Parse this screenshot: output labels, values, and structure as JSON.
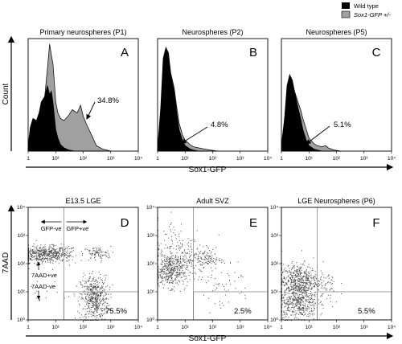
{
  "legend": {
    "items": [
      {
        "label": "Wild type",
        "color": "#000000"
      },
      {
        "label": "Sox1-GFP +/-",
        "color": "#a0a0a0"
      }
    ]
  },
  "chart_data": [
    {
      "type": "area",
      "panel": "A",
      "title": "Primary neurospheres (P1)",
      "xscale": "log",
      "xlim": [
        1,
        10000
      ],
      "xticks": [
        "1",
        "10¹",
        "10²",
        "10³",
        "10⁴"
      ],
      "ylabel": "Count",
      "xlabel": "Sox1-GFP",
      "percent_label": "34.8%",
      "series": [
        {
          "name": "Wild type",
          "color": "#000000",
          "x": [
            1,
            1.2,
            1.5,
            2,
            2.5,
            3,
            4,
            5,
            6,
            7,
            8,
            10,
            12,
            15,
            20,
            30,
            50
          ],
          "y": [
            0.05,
            0.22,
            0.3,
            0.28,
            0.35,
            0.45,
            0.5,
            0.6,
            0.52,
            0.55,
            0.45,
            0.2,
            0.12,
            0.06,
            0.03,
            0.01,
            0
          ]
        },
        {
          "name": "Sox1-GFP +/-",
          "color": "#a0a0a0",
          "x": [
            1,
            1.5,
            2,
            3,
            4,
            5,
            6,
            7,
            8,
            9,
            10,
            12,
            15,
            20,
            30,
            40,
            60,
            80,
            100,
            130,
            200,
            300,
            500,
            1000
          ],
          "y": [
            0.02,
            0.12,
            0.2,
            0.3,
            0.5,
            0.75,
            0.98,
            0.88,
            0.8,
            0.62,
            0.45,
            0.35,
            0.3,
            0.28,
            0.33,
            0.38,
            0.35,
            0.42,
            0.32,
            0.25,
            0.15,
            0.05,
            0.02,
            0
          ]
        }
      ]
    },
    {
      "type": "area",
      "panel": "B",
      "title": "Neurospheres (P2)",
      "xscale": "log",
      "xlim": [
        1,
        10000
      ],
      "xticks": [
        "1",
        "10¹",
        "10²",
        "10³",
        "10⁴"
      ],
      "percent_label": "4.8%",
      "series": [
        {
          "name": "Wild type",
          "color": "#000000",
          "x": [
            1,
            1.3,
            1.6,
            2,
            2.5,
            3,
            4,
            5,
            6,
            8,
            10,
            15,
            20,
            30
          ],
          "y": [
            0.02,
            0.4,
            0.85,
            0.95,
            0.9,
            0.7,
            0.55,
            0.35,
            0.2,
            0.1,
            0.05,
            0.02,
            0.01,
            0
          ]
        },
        {
          "name": "Sox1-GFP +/-",
          "color": "#a0a0a0",
          "x": [
            1,
            1.3,
            1.6,
            2,
            2.5,
            3,
            4,
            5,
            6,
            8,
            10,
            15,
            20,
            30,
            50,
            80,
            150
          ],
          "y": [
            0.02,
            0.35,
            0.8,
            0.92,
            0.88,
            0.72,
            0.58,
            0.4,
            0.26,
            0.15,
            0.1,
            0.06,
            0.04,
            0.03,
            0.02,
            0.01,
            0
          ]
        }
      ]
    },
    {
      "type": "area",
      "panel": "C",
      "title": "Neurospheres (P5)",
      "xscale": "log",
      "xlim": [
        1,
        10000
      ],
      "xticks": [
        "1",
        "10¹",
        "10²",
        "10³",
        "10⁴"
      ],
      "percent_label": "5.1%",
      "series": [
        {
          "name": "Wild type",
          "color": "#000000",
          "x": [
            1,
            1.3,
            1.6,
            2,
            2.5,
            3,
            4,
            5,
            6,
            8,
            10,
            15,
            20,
            30
          ],
          "y": [
            0.05,
            0.3,
            0.6,
            0.7,
            0.65,
            0.55,
            0.4,
            0.3,
            0.2,
            0.1,
            0.05,
            0.02,
            0.01,
            0
          ]
        },
        {
          "name": "Sox1-GFP +/-",
          "color": "#a0a0a0",
          "x": [
            1,
            1.3,
            1.6,
            2,
            2.5,
            3,
            4,
            5,
            6,
            8,
            10,
            15,
            20,
            30,
            40,
            50,
            80,
            150
          ],
          "y": [
            0.05,
            0.28,
            0.55,
            0.68,
            0.62,
            0.55,
            0.45,
            0.38,
            0.3,
            0.2,
            0.12,
            0.07,
            0.05,
            0.04,
            0.05,
            0.03,
            0.01,
            0
          ]
        }
      ]
    },
    {
      "type": "scatter",
      "panel": "D",
      "title": "E13.5 LGE",
      "xscale": "log",
      "yscale": "log",
      "xlim": [
        1,
        10000
      ],
      "ylim": [
        1,
        10000
      ],
      "xticks": [
        "1",
        "10¹",
        "10²",
        "10³",
        "10⁴"
      ],
      "yticks": [
        "10⁰",
        "10¹",
        "10²",
        "10³",
        "10⁴"
      ],
      "ylabel": "7AAD",
      "xlabel": "Sox1-GFP",
      "percent_label": "75.5%",
      "gate_x": 20,
      "gate_box": {
        "x": [
          20,
          10000
        ],
        "y": [
          1,
          10
        ]
      },
      "annotations": [
        "GFP-ve",
        "GFP+ve",
        "7AAD+ve",
        "7AAD-ve"
      ],
      "clusters": [
        {
          "cx": 3,
          "cy": 220,
          "sx": 0.45,
          "sy": 0.15,
          "n": 380
        },
        {
          "cx": 12,
          "cy": 230,
          "sx": 0.35,
          "sy": 0.14,
          "n": 160
        },
        {
          "cx": 300,
          "cy": 230,
          "sx": 0.25,
          "sy": 0.13,
          "n": 90
        },
        {
          "cx": 250,
          "cy": 6,
          "sx": 0.25,
          "sy": 0.4,
          "n": 520
        },
        {
          "cx": 3,
          "cy": 8,
          "sx": 0.3,
          "sy": 0.35,
          "n": 15
        }
      ]
    },
    {
      "type": "scatter",
      "panel": "E",
      "title": "Adult SVZ",
      "xscale": "log",
      "yscale": "log",
      "xlim": [
        1,
        10000
      ],
      "ylim": [
        1,
        10000
      ],
      "xticks": [
        "1",
        "10¹",
        "10²",
        "10³",
        "10⁴"
      ],
      "yticks": [
        "10⁰",
        "10¹",
        "10²",
        "10³",
        "10⁴"
      ],
      "percent_label": "2.5%",
      "gate_x": 20,
      "gate_box": {
        "x": [
          20,
          10000
        ],
        "y": [
          1,
          10
        ]
      },
      "clusters": [
        {
          "cx": 3,
          "cy": 60,
          "sx": 0.3,
          "sy": 0.3,
          "n": 420
        },
        {
          "cx": 50,
          "cy": 150,
          "sx": 0.3,
          "sy": 0.18,
          "n": 120
        },
        {
          "cx": 6,
          "cy": 300,
          "sx": 0.6,
          "sy": 0.55,
          "n": 170
        },
        {
          "cx": 200,
          "cy": 20,
          "sx": 0.55,
          "sy": 0.5,
          "n": 60
        }
      ]
    },
    {
      "type": "scatter",
      "panel": "F",
      "title": "LGE Neurospheres (P6)",
      "xscale": "log",
      "yscale": "log",
      "xlim": [
        1,
        10000
      ],
      "ylim": [
        1,
        10000
      ],
      "xticks": [
        "1",
        "10¹",
        "10²",
        "10³",
        "10⁴"
      ],
      "yticks": [
        "10⁰",
        "10¹",
        "10²",
        "10³",
        "10⁴"
      ],
      "percent_label": "5.5%",
      "gate_x": 20,
      "gate_box": {
        "x": [
          20,
          10000
        ],
        "y": [
          1,
          10
        ]
      },
      "clusters": [
        {
          "cx": 4,
          "cy": 25,
          "sx": 0.35,
          "sy": 0.3,
          "n": 520
        },
        {
          "cx": 4,
          "cy": 4,
          "sx": 0.35,
          "sy": 0.3,
          "n": 420
        },
        {
          "cx": 40,
          "cy": 15,
          "sx": 0.25,
          "sy": 0.35,
          "n": 60
        }
      ]
    }
  ]
}
